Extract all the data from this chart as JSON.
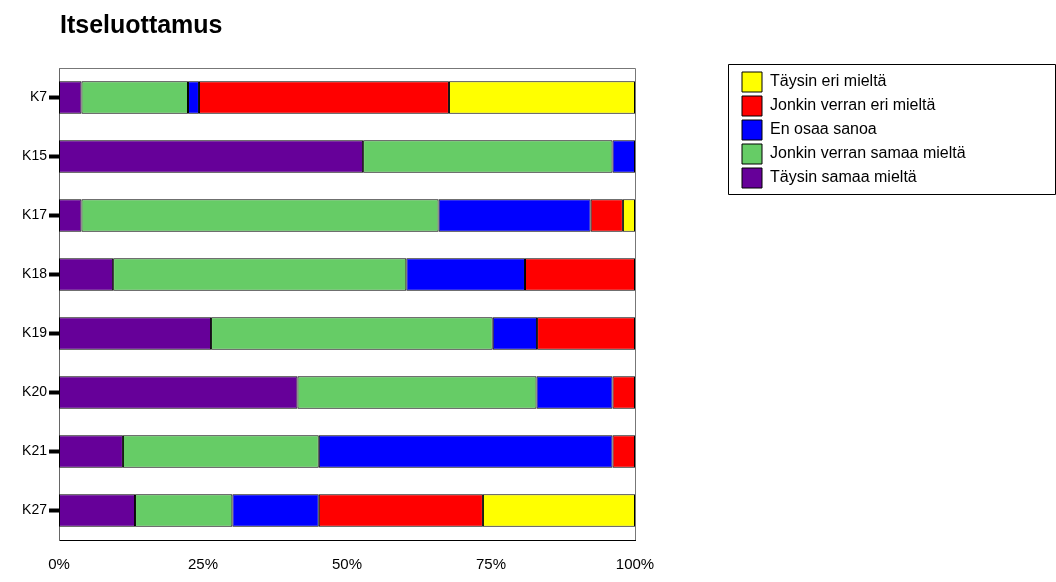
{
  "chart_data": {
    "type": "bar",
    "title": "Itseluottamus",
    "orientation": "horizontal",
    "stacked": true,
    "categories": [
      "K7",
      "K15",
      "K17",
      "K18",
      "K19",
      "K20",
      "K21",
      "K27"
    ],
    "series": [
      {
        "name": "Täysin samaa mieltä",
        "color": "#660099",
        "values": [
          3.9,
          52.8,
          3.9,
          9.4,
          26.4,
          41.4,
          11.1,
          13.2
        ]
      },
      {
        "name": "Jonkin verran samaa mieltä",
        "color": "#66cc66",
        "values": [
          18.5,
          43.3,
          62.0,
          50.9,
          48.9,
          41.5,
          34.0,
          16.9
        ]
      },
      {
        "name": "En osaa sanoa",
        "color": "#0000ff",
        "values": [
          1.9,
          3.9,
          26.4,
          20.6,
          7.7,
          13.2,
          51.0,
          15.0
        ]
      },
      {
        "name": "Jonkin verran eri mieltä",
        "color": "#ff0000",
        "values": [
          43.4,
          null,
          5.6,
          19.1,
          17.0,
          3.9,
          3.9,
          28.5
        ]
      },
      {
        "name": "Täysin eri mieltä",
        "color": "#ffff00",
        "values": [
          32.3,
          null,
          2.1,
          null,
          null,
          null,
          null,
          26.4
        ]
      }
    ],
    "xlim": [
      0,
      100
    ],
    "xticks": [
      {
        "value": 0,
        "label": "0%"
      },
      {
        "value": 25,
        "label": "25%"
      },
      {
        "value": 50,
        "label": "50%"
      },
      {
        "value": 75,
        "label": "75%"
      },
      {
        "value": 100,
        "label": "100%"
      }
    ],
    "grid": false,
    "legend": "top right"
  }
}
